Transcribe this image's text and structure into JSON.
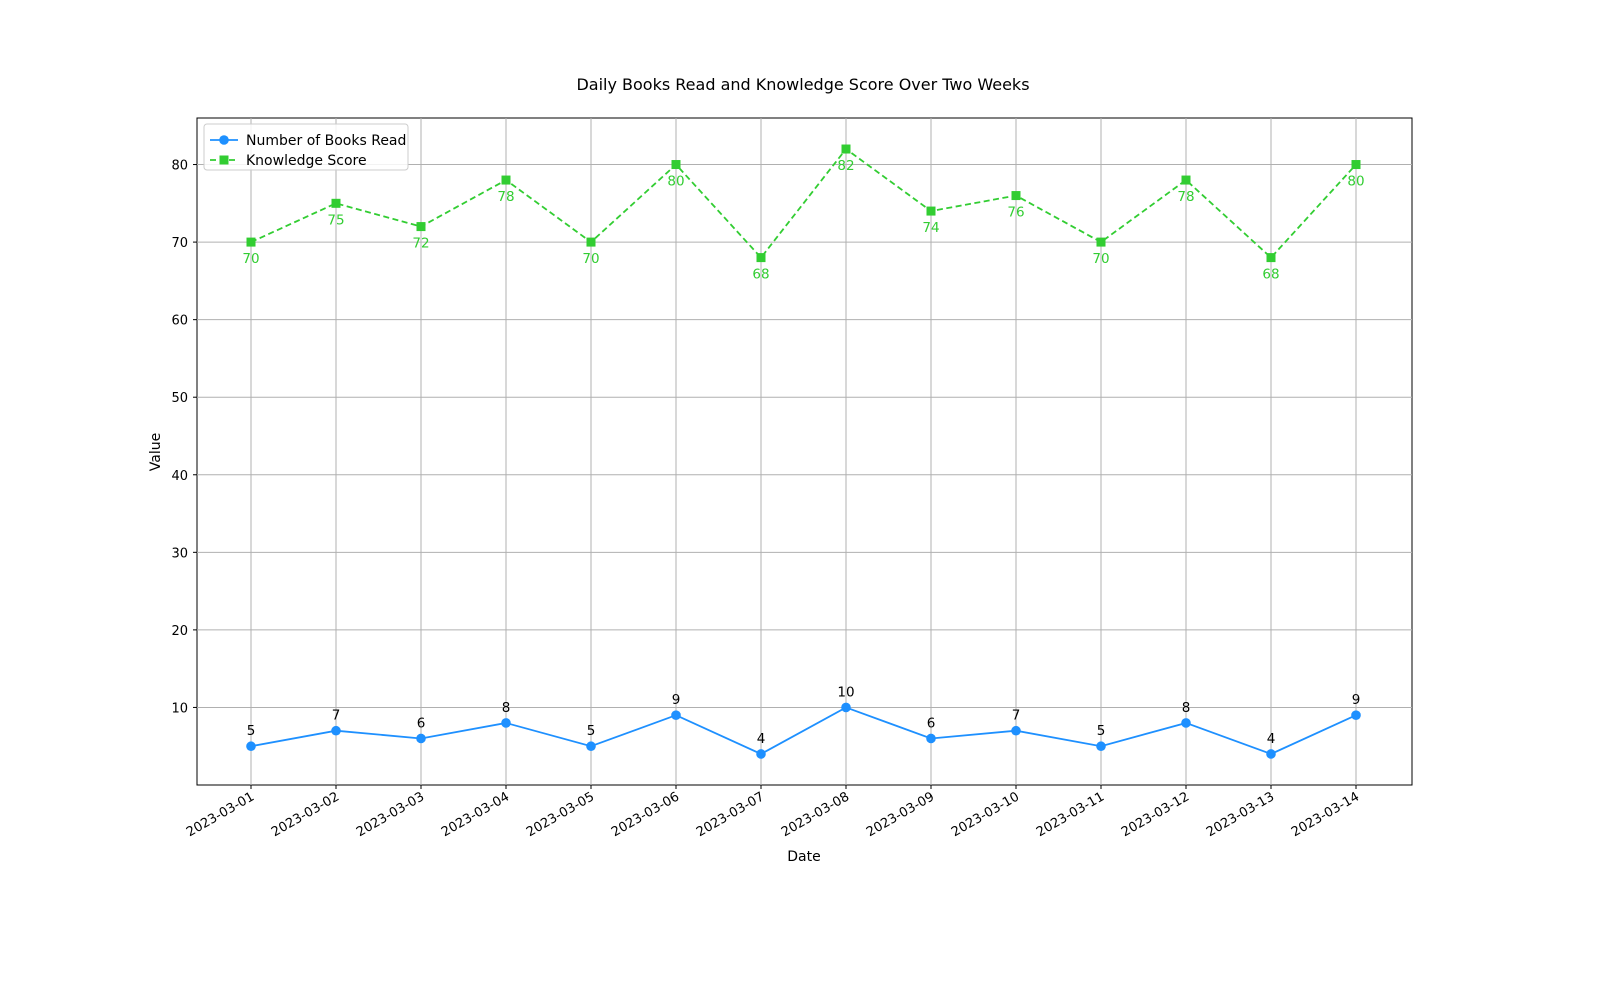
{
  "chart_data": {
    "type": "line",
    "title": "Daily Books Read and Knowledge Score Over Two Weeks",
    "xlabel": "Date",
    "ylabel": "Value",
    "ylim": [
      0,
      86
    ],
    "yticks": [
      10,
      20,
      30,
      40,
      50,
      60,
      70,
      80
    ],
    "grid": true,
    "legend_position": "top-left",
    "x": [
      "2023-03-01",
      "2023-03-02",
      "2023-03-03",
      "2023-03-04",
      "2023-03-05",
      "2023-03-06",
      "2023-03-07",
      "2023-03-08",
      "2023-03-09",
      "2023-03-10",
      "2023-03-11",
      "2023-03-12",
      "2023-03-13",
      "2023-03-14"
    ],
    "series": [
      {
        "name": "Number of Books Read",
        "values": [
          5,
          7,
          6,
          8,
          5,
          9,
          4,
          10,
          6,
          7,
          5,
          8,
          4,
          9
        ],
        "color": "#1e90ff",
        "line_style": "solid",
        "marker": "circle",
        "label_color": "#000000",
        "label_position": "above"
      },
      {
        "name": "Knowledge Score",
        "values": [
          70,
          75,
          72,
          78,
          70,
          80,
          68,
          82,
          74,
          76,
          70,
          78,
          68,
          80
        ],
        "color": "#32cd32",
        "line_style": "dashed",
        "marker": "square",
        "label_color": "#32cd32",
        "label_position": "below"
      }
    ]
  }
}
